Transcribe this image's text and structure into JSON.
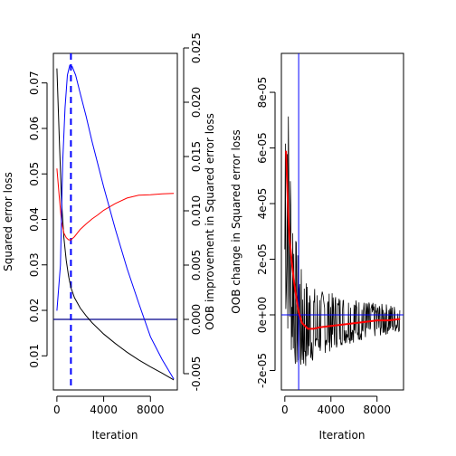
{
  "chart_data": [
    {
      "type": "line",
      "xlabel": "Iteration",
      "ylabel": "Squared error loss",
      "ylabel_right": "OOB improvement in Squared error loss",
      "xlim": [
        -300,
        10300
      ],
      "ylim": [
        0.0025,
        0.0765
      ],
      "ylim_right": [
        -0.0065,
        0.0245
      ],
      "xticks": [
        0,
        4000,
        8000
      ],
      "xtick_labels": [
        "0",
        "4000",
        "8000"
      ],
      "yticks": [
        0.01,
        0.02,
        0.03,
        0.04,
        0.05,
        0.06,
        0.07
      ],
      "ytick_labels": [
        "0.01",
        "0.02",
        "0.03",
        "0.04",
        "0.05",
        "0.06",
        "0.07"
      ],
      "yticks_right": [
        -0.005,
        0.0,
        0.005,
        0.01,
        0.015,
        0.02,
        0.025
      ],
      "ytick_labels_right": [
        "-0.005",
        "0.000",
        "0.005",
        "0.010",
        "0.015",
        "0.020",
        "0.025"
      ],
      "grid": false,
      "series": [
        {
          "color": "#000000",
          "axis": "left",
          "x": [
            0,
            200,
            400,
            600,
            800,
            1000,
            1200,
            1500,
            2000,
            2500,
            3000,
            4000,
            5000,
            6000,
            7000,
            8000,
            9000,
            10000
          ],
          "y": [
            0.0732,
            0.058,
            0.044,
            0.036,
            0.031,
            0.0275,
            0.025,
            0.0228,
            0.0205,
            0.0188,
            0.0173,
            0.0148,
            0.0127,
            0.0108,
            0.0091,
            0.0076,
            0.0062,
            0.0047
          ]
        },
        {
          "color": "#ff0000",
          "axis": "left",
          "x": [
            0,
            200,
            400,
            600,
            800,
            1000,
            1200,
            1500,
            2000,
            2500,
            3000,
            3500,
            4000,
            5000,
            6000,
            7000,
            8000,
            9000,
            10000
          ],
          "y": [
            0.0512,
            0.045,
            0.0395,
            0.037,
            0.036,
            0.0355,
            0.0355,
            0.0362,
            0.0378,
            0.039,
            0.0401,
            0.041,
            0.042,
            0.0435,
            0.0447,
            0.0453,
            0.0454,
            0.0456,
            0.0457
          ]
        },
        {
          "color": "#0000ff",
          "axis": "right",
          "x": [
            0,
            300,
            500,
            700,
            900,
            1100,
            1300,
            1600,
            2000,
            2500,
            3000,
            4000,
            5000,
            6000,
            7000,
            8000,
            9000,
            10000
          ],
          "y": [
            0.0008,
            0.005,
            0.0145,
            0.0195,
            0.0225,
            0.0234,
            0.0233,
            0.0225,
            0.0208,
            0.0187,
            0.0164,
            0.0122,
            0.0083,
            0.0047,
            0.0015,
            -0.0016,
            -0.0037,
            -0.0055
          ]
        }
      ],
      "annotations": [
        {
          "kind": "hline",
          "axis": "right",
          "value": 0.0,
          "color": "#00008b"
        },
        {
          "kind": "vline",
          "value": 1200,
          "color": "#0000ff",
          "dashed": true
        }
      ]
    },
    {
      "type": "line",
      "xlabel": "Iteration",
      "ylabel": "OOB change in Squared error loss",
      "xlim": [
        -300,
        10300
      ],
      "ylim": [
        -2.7e-05,
        9.4e-05
      ],
      "xticks": [
        0,
        4000,
        8000
      ],
      "xtick_labels": [
        "0",
        "4000",
        "8000"
      ],
      "yticks": [
        -2e-05,
        0,
        2e-05,
        4e-05,
        6e-05,
        8e-05
      ],
      "ytick_labels": [
        "-2e-05",
        "0e+00",
        "2e-05",
        "4e-05",
        "6e-05",
        "8e-05"
      ],
      "grid": false,
      "series": [
        {
          "color": "#000000",
          "noisy": true,
          "x": [
            0,
            100,
            200,
            300,
            400,
            500,
            700,
            900,
            1100,
            1400,
            1800,
            2200,
            3000,
            4000,
            5000,
            6000,
            7000,
            8000,
            9000,
            10000
          ],
          "envelope_low": [
            0.0,
            -5e-06,
            -8e-06,
            -1e-05,
            -1.3e-05,
            -1.5e-05,
            -1.7e-05,
            -1.9e-05,
            -2.1e-05,
            -2.2e-05,
            -2e-05,
            -1.8e-05,
            -1.5e-05,
            -1.3e-05,
            -1.1e-05,
            -1e-05,
            -9e-06,
            -8e-06,
            -7e-06,
            -6e-06
          ],
          "envelope_high": [
            8e-05,
            9e-05,
            8.7e-05,
            7.8e-05,
            6.5e-05,
            5.5e-05,
            4e-05,
            3e-05,
            2.3e-05,
            1.7e-05,
            1.3e-05,
            1.1e-05,
            9e-06,
            8e-06,
            7e-06,
            6e-06,
            5e-06,
            4e-06,
            4e-06,
            3e-06
          ]
        },
        {
          "color": "#ff0000",
          "x": [
            100,
            200,
            300,
            400,
            600,
            800,
            1000,
            1200,
            1500,
            2000,
            2500,
            3000,
            4000,
            5000,
            6000,
            7000,
            8000,
            9000,
            10000
          ],
          "y": [
            5.9e-05,
            4.7e-05,
            3.6e-05,
            2.8e-05,
            1.9e-05,
            1.2e-05,
            6e-06,
            1e-06,
            -3e-06,
            -5e-06,
            -5e-06,
            -4.5e-06,
            -4e-06,
            -3.5e-06,
            -3e-06,
            -2.5e-06,
            -2e-06,
            -2e-06,
            -1.5e-06
          ]
        }
      ],
      "annotations": [
        {
          "kind": "hline",
          "value": 0,
          "color": "#0000ff"
        },
        {
          "kind": "vline",
          "value": 1200,
          "color": "#0000ff",
          "dashed": false
        }
      ]
    }
  ]
}
